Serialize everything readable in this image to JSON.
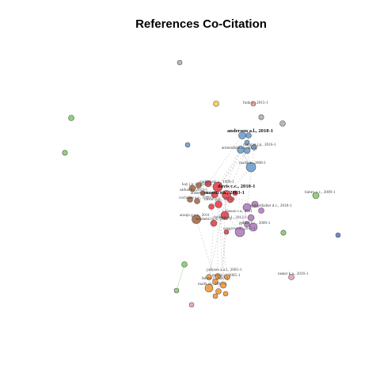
{
  "title": "References Co-Citation",
  "colors": {
    "red": "#e8525c",
    "blue": "#7ba7d4",
    "brown": "#b07a5a",
    "purple": "#b88ac7",
    "orange": "#f5a24b",
    "green": "#8fd27a",
    "pink": "#f0a6c8",
    "gray": "#b9b9b9",
    "yellow": "#f6d25e",
    "darkblue": "#6a8fc4",
    "salmon": "#f3a995"
  },
  "labels": [
    {
      "id": "l1",
      "text": "funk c., 2015-1",
      "big": false
    },
    {
      "id": "l2",
      "text": "anderson a.l., 2018-1",
      "big": true
    },
    {
      "id": "l3",
      "text": "mangan j.p., 2016-1",
      "big": false
    },
    {
      "id": "l4",
      "text": "armendariz r.r., 2014",
      "big": false
    },
    {
      "id": "l5",
      "text": "malik a., 2008-1",
      "big": false
    },
    {
      "id": "l6",
      "text": "garbowski a., 1999-1",
      "big": false
    },
    {
      "id": "l7",
      "text": "kay j.p.-i., 2010-1",
      "big": false
    },
    {
      "id": "l8",
      "text": "davis c.c., 2010-1",
      "big": true
    },
    {
      "id": "l9",
      "text": "sarkar b., 2014-1",
      "big": false
    },
    {
      "id": "l10",
      "text": "mason r.a., 2003-1",
      "big": true
    },
    {
      "id": "l11",
      "text": "anderson m., 2014-1",
      "big": false
    },
    {
      "id": "l12",
      "text": "cochrane s.e., 1999-1",
      "big": false
    },
    {
      "id": "l13",
      "text": "larson p.d., 2013-1",
      "big": false
    },
    {
      "id": "l14",
      "text": "spiegelhalter d.c., 2018-1",
      "big": false
    },
    {
      "id": "l15",
      "text": "araujo g.s.e., 2011",
      "big": false
    },
    {
      "id": "l16",
      "text": "feldman e.l., 2012-1",
      "big": false
    },
    {
      "id": "l17",
      "text": "stephens m.a., 2002-1",
      "big": false
    },
    {
      "id": "l18",
      "text": "gellert b.c., 2009-1",
      "big": false
    },
    {
      "id": "l19",
      "text": "cosgrove a., 2017-1",
      "big": false
    },
    {
      "id": "l20",
      "text": "hubey c.c., 2009-1",
      "big": false
    },
    {
      "id": "l21",
      "text": "jackson a.a.l., 2005-1",
      "big": false
    },
    {
      "id": "l22",
      "text": "moore c., 2005-1",
      "big": false
    },
    {
      "id": "l23",
      "text": "felton j., 2007-1",
      "big": false
    },
    {
      "id": "l24",
      "text": "malik m., 2017-1",
      "big": false
    },
    {
      "id": "l25",
      "text": "tasker k.a., 2016-1",
      "big": false
    },
    {
      "id": "l26",
      "text": "mason r.a., 2011",
      "big": false
    }
  ]
}
